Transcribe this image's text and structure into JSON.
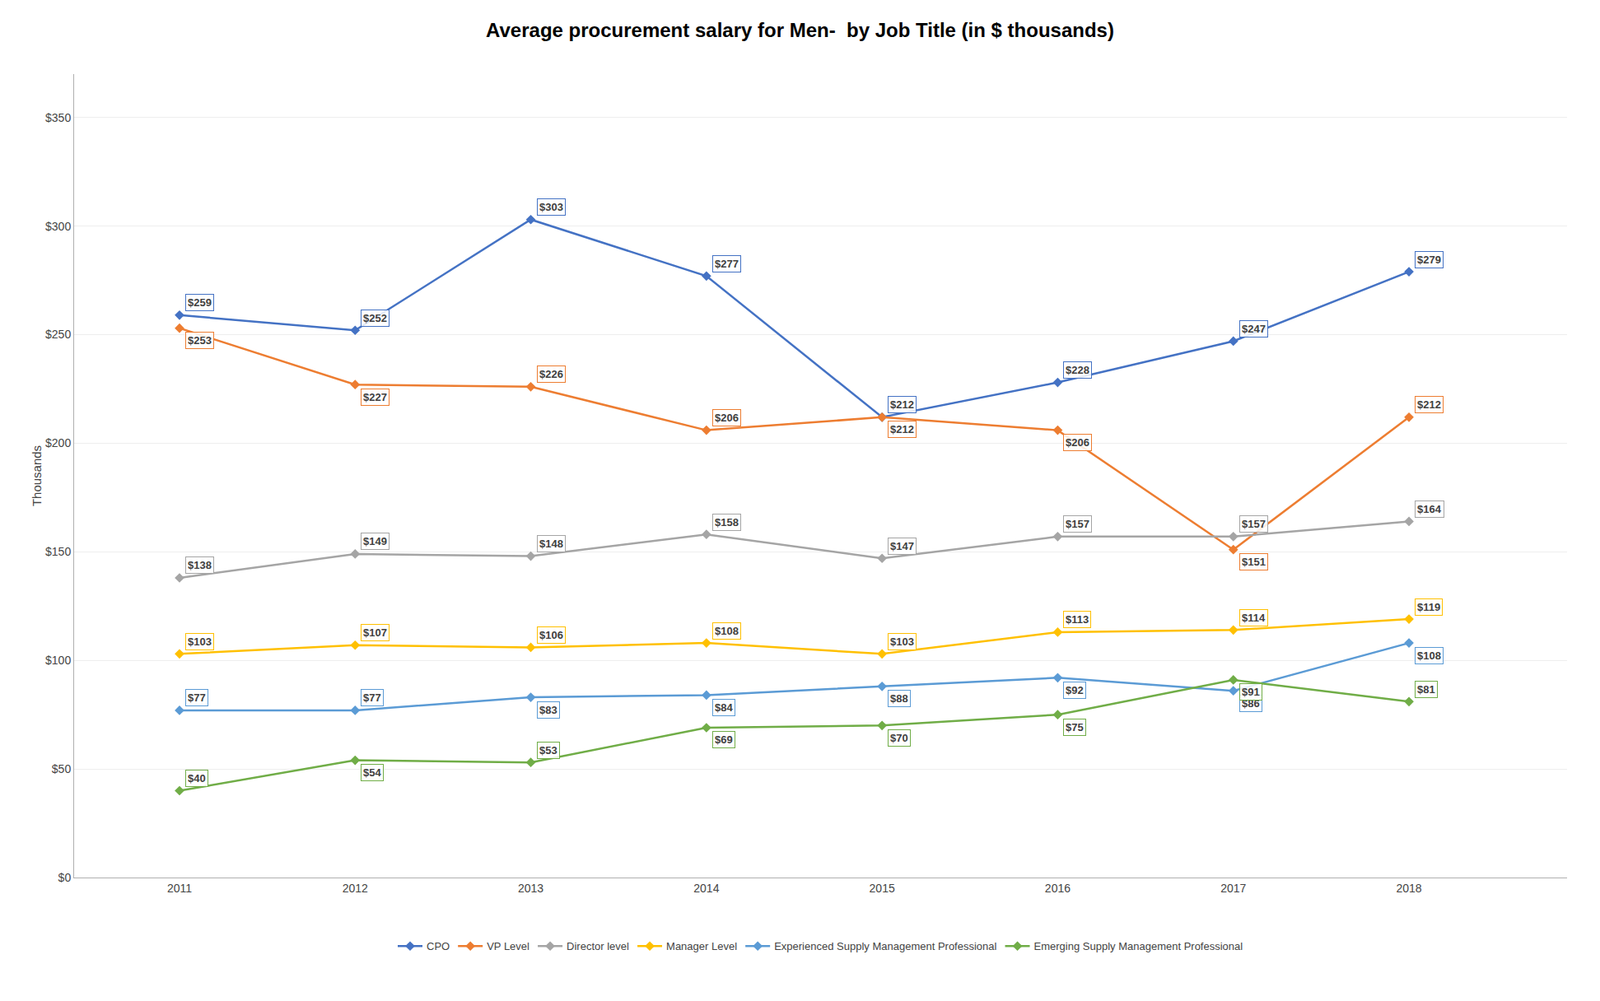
{
  "chart_data": {
    "type": "line",
    "title": "Average procurement salary for Men-  by Job Title (in $ thousands)",
    "ylabel": "Thousands",
    "x": [
      2011,
      2012,
      2013,
      2014,
      2015,
      2016,
      2017,
      2018
    ],
    "xlim": [
      2010.4,
      2018.9
    ],
    "xticks": [
      2011,
      2012,
      2013,
      2014,
      2015,
      2016,
      2017,
      2018
    ],
    "ylim": [
      0,
      370
    ],
    "yticks": [
      {
        "value": 0,
        "label": "$0"
      },
      {
        "value": 50,
        "label": "$50"
      },
      {
        "value": 100,
        "label": "$100"
      },
      {
        "value": 150,
        "label": "$150"
      },
      {
        "value": 200,
        "label": "$200"
      },
      {
        "value": 250,
        "label": "$250"
      },
      {
        "value": 300,
        "label": "$300"
      },
      {
        "value": 350,
        "label": "$350"
      }
    ],
    "grid": true,
    "legend": "bottom",
    "data_labels": true,
    "marker": "diamond",
    "line_style": "solid",
    "series": [
      {
        "name": "CPO",
        "color": "#4472C4",
        "values": [
          259,
          252,
          303,
          277,
          212,
          228,
          247,
          279
        ],
        "value_labels": [
          "$259",
          "$252",
          "$303",
          "$277",
          "$212",
          "$228",
          "$247",
          "$279"
        ]
      },
      {
        "name": "VP Level",
        "color": "#ED7D31",
        "values": [
          253,
          227,
          226,
          206,
          212,
          206,
          151,
          212
        ],
        "value_labels": [
          "$253",
          "$227",
          "$226",
          "$206",
          "$212",
          "$206",
          "$151",
          "$212"
        ]
      },
      {
        "name": "Director level",
        "color": "#A5A5A5",
        "values": [
          138,
          149,
          148,
          158,
          147,
          157,
          157,
          164
        ],
        "value_labels": [
          "$138",
          "$149",
          "$148",
          "$158",
          "$147",
          "$157",
          "$157",
          "$164"
        ]
      },
      {
        "name": "Manager Level",
        "color": "#FFC000",
        "values": [
          103,
          107,
          106,
          108,
          103,
          113,
          114,
          119
        ],
        "value_labels": [
          "$103",
          "$107",
          "$106",
          "$108",
          "$103",
          "$113",
          "$114",
          "$119"
        ]
      },
      {
        "name": "Experienced Supply Management Professional",
        "color": "#5B9BD5",
        "values": [
          77,
          77,
          83,
          84,
          88,
          92,
          86,
          108
        ],
        "value_labels": [
          "$77",
          "$77",
          "$83",
          "$84",
          "$88",
          "$92",
          "$86",
          "$108"
        ]
      },
      {
        "name": "Emerging Supply Management Professional",
        "color": "#70AD47",
        "values": [
          40,
          54,
          53,
          69,
          70,
          75,
          91,
          81
        ],
        "value_labels": [
          "$40",
          "$54",
          "$53",
          "$69",
          "$70",
          "$75",
          "$91",
          "$81"
        ]
      }
    ]
  }
}
